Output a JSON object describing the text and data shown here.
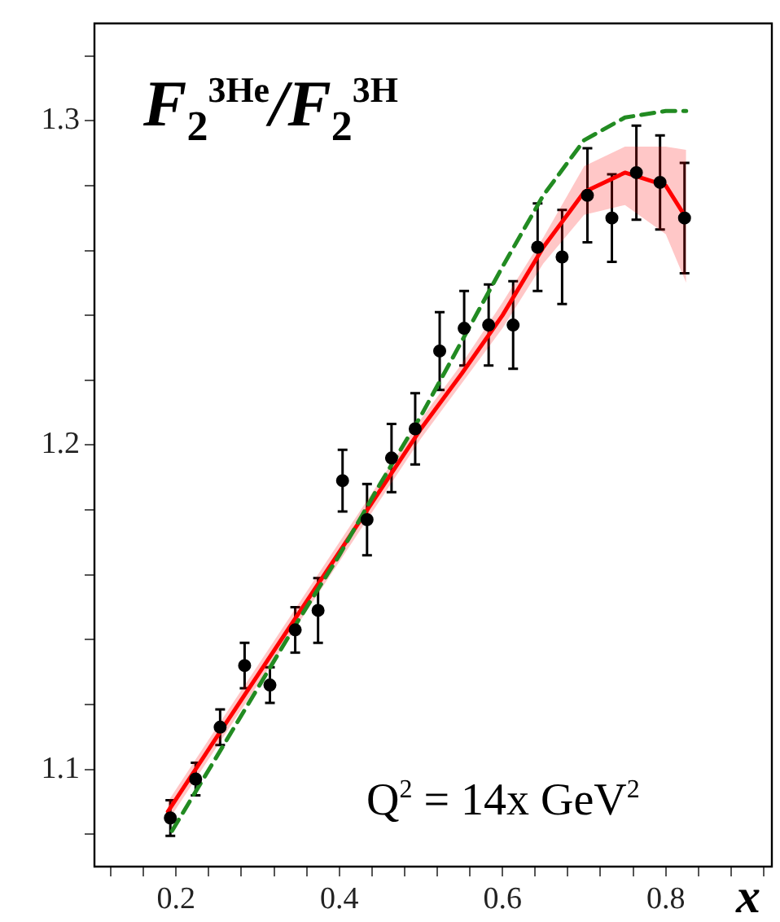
{
  "chart_data": {
    "type": "scatter",
    "title": "F$_{2}$$^{3He}$/F$_{2}$$^{3H}$",
    "xlabel": "x",
    "annotations": [
      "Q$^{2}$ = 14x GeV$^{2}$"
    ],
    "xlim": [
      0.1,
      0.93
    ],
    "ylim": [
      1.07,
      1.33
    ],
    "xticks": [
      {
        "value": 0.12,
        "label": null
      },
      {
        "value": 0.16,
        "label": null
      },
      {
        "value": 0.2,
        "label": "0.2"
      },
      {
        "value": 0.24,
        "label": null
      },
      {
        "value": 0.28,
        "label": null
      },
      {
        "value": 0.32,
        "label": null
      },
      {
        "value": 0.36,
        "label": null
      },
      {
        "value": 0.4,
        "label": "0.4"
      },
      {
        "value": 0.44,
        "label": null
      },
      {
        "value": 0.48,
        "label": null
      },
      {
        "value": 0.52,
        "label": null
      },
      {
        "value": 0.56,
        "label": null
      },
      {
        "value": 0.6,
        "label": "0.6"
      },
      {
        "value": 0.64,
        "label": null
      },
      {
        "value": 0.68,
        "label": null
      },
      {
        "value": 0.72,
        "label": null
      },
      {
        "value": 0.76,
        "label": null
      },
      {
        "value": 0.8,
        "label": "0.8"
      },
      {
        "value": 0.84,
        "label": null
      },
      {
        "value": 0.88,
        "label": null
      },
      {
        "value": 0.92,
        "label": null
      }
    ],
    "yticks": [
      {
        "value": 1.08,
        "label": null
      },
      {
        "value": 1.1,
        "label": "1.1"
      },
      {
        "value": 1.12,
        "label": null
      },
      {
        "value": 1.14,
        "label": null
      },
      {
        "value": 1.16,
        "label": null
      },
      {
        "value": 1.18,
        "label": null
      },
      {
        "value": 1.2,
        "label": "1.2"
      },
      {
        "value": 1.22,
        "label": null
      },
      {
        "value": 1.24,
        "label": null
      },
      {
        "value": 1.26,
        "label": null
      },
      {
        "value": 1.28,
        "label": null
      },
      {
        "value": 1.3,
        "label": "1.3"
      },
      {
        "value": 1.32,
        "label": null
      }
    ],
    "grid": false,
    "legend": false,
    "series": [
      {
        "type": "line",
        "color": "#ff0000",
        "marker": "none",
        "x": [
          0.19,
          0.25,
          0.3,
          0.35,
          0.4,
          0.45,
          0.5,
          0.55,
          0.6,
          0.65,
          0.7,
          0.75,
          0.8,
          0.825
        ],
        "values": [
          1.087,
          1.11,
          1.129,
          1.148,
          1.167,
          1.186,
          1.205,
          1.222,
          1.24,
          1.261,
          1.278,
          1.284,
          1.28,
          1.27
        ],
        "lower": [
          1.084,
          1.107,
          1.126,
          1.145,
          1.164,
          1.183,
          1.202,
          1.219,
          1.236,
          1.256,
          1.271,
          1.274,
          1.265,
          1.25
        ],
        "upper": [
          1.09,
          1.113,
          1.132,
          1.151,
          1.17,
          1.189,
          1.208,
          1.225,
          1.244,
          1.264,
          1.286,
          1.292,
          1.292,
          1.291
        ]
      },
      {
        "type": "line",
        "color": "#228b22",
        "marker": "none",
        "line_style": "dashed",
        "x": [
          0.195,
          0.25,
          0.3,
          0.35,
          0.4,
          0.45,
          0.5,
          0.55,
          0.6,
          0.65,
          0.7,
          0.75,
          0.8,
          0.825
        ],
        "values": [
          1.081,
          1.104,
          1.125,
          1.146,
          1.166,
          1.188,
          1.209,
          1.232,
          1.255,
          1.277,
          1.294,
          1.301,
          1.303,
          1.303
        ]
      },
      {
        "type": "scatter",
        "color": "#000000",
        "marker": "circle",
        "x": [
          0.193,
          0.224,
          0.254,
          0.284,
          0.315,
          0.346,
          0.374,
          0.404,
          0.434,
          0.464,
          0.493,
          0.523,
          0.553,
          0.583,
          0.613,
          0.643,
          0.673,
          0.704,
          0.734,
          0.764,
          0.793,
          0.823
        ],
        "values": [
          1.085,
          1.097,
          1.113,
          1.132,
          1.126,
          1.143,
          1.149,
          1.189,
          1.177,
          1.196,
          1.205,
          1.229,
          1.236,
          1.237,
          1.237,
          1.261,
          1.258,
          1.277,
          1.27,
          1.284,
          1.281,
          1.27
        ],
        "errors": [
          0.0055,
          0.005,
          0.0055,
          0.007,
          0.0055,
          0.007,
          0.01,
          0.0095,
          0.011,
          0.0105,
          0.011,
          0.012,
          0.0115,
          0.0125,
          0.0135,
          0.0135,
          0.0145,
          0.0145,
          0.0135,
          0.0145,
          0.0145,
          0.017
        ]
      }
    ]
  }
}
